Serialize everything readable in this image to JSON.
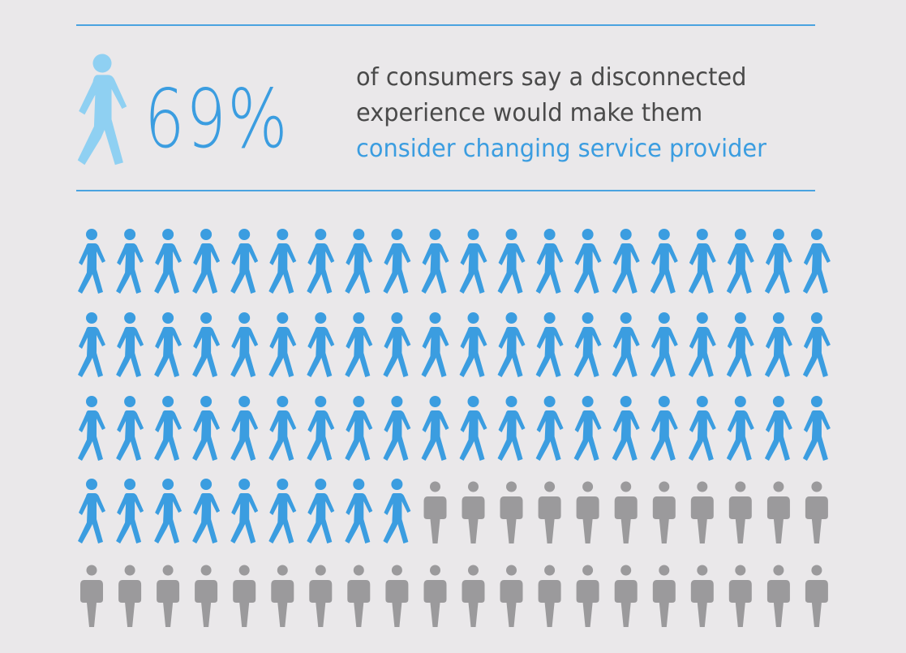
{
  "colors": {
    "accent": "#3b9de0",
    "accent_light": "#8fd0f2",
    "muted": "#9b9a9c",
    "text": "#4a4a4a",
    "rule": "#4aa3e0"
  },
  "headline": {
    "percent_text": "69%",
    "percent_value": 69,
    "icon": "walking-person-icon"
  },
  "statement": {
    "line1": "of consumers say a disconnected",
    "line2": "experience would make them",
    "line3": "consider changing service provider"
  },
  "pictogram": {
    "total": 100,
    "highlighted": 69,
    "highlighted_icon": "walking-person-icon",
    "other_icon": "standing-person-icon"
  }
}
